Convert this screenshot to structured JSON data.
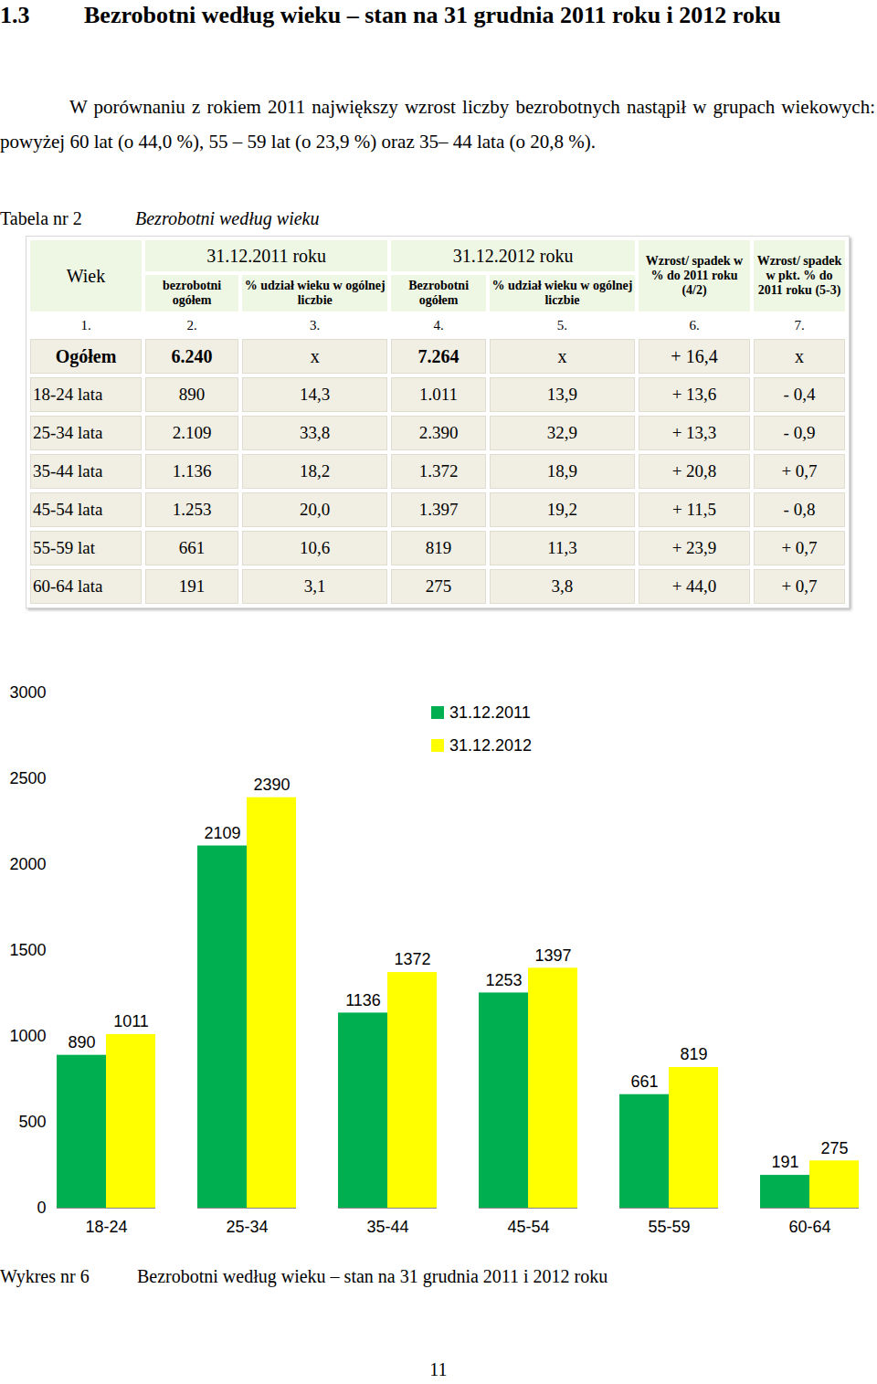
{
  "heading": {
    "number": "1.3",
    "text": "Bezrobotni według wieku – stan na 31 grudnia 2011 roku i 2012 roku"
  },
  "paragraph": "W porównaniu z rokiem 2011 największy wzrost liczby bezrobotnych nastąpił w grupach wiekowych: powyżej 60 lat (o 44,0 %), 55 – 59 lat (o 23,9 %) oraz 35– 44 lata (o 20,8 %).",
  "table": {
    "label": "Tabela nr 2",
    "title": "Bezrobotni według wieku",
    "header": {
      "first": "Wiek",
      "groups": [
        "31.12.2011 roku",
        "31.12.2012 roku"
      ],
      "subheaders": [
        "bezrobotni ogółem",
        "% udział wieku w ogólnej liczbie",
        "Bezrobotni ogółem",
        "% udział wieku w ogólnej liczbie"
      ],
      "change_pct": "Wzrost/ spadek w % do 2011 roku (4/2)",
      "change_pts": "Wzrost/ spadek w pkt. % do 2011 roku (5-3)"
    },
    "numbers": [
      "1.",
      "2.",
      "3.",
      "4.",
      "5.",
      "6.",
      "7."
    ],
    "rows": [
      [
        "Ogółem",
        "6.240",
        "x",
        "7.264",
        "x",
        "+ 16,4",
        "x"
      ],
      [
        "18-24 lata",
        "890",
        "14,3",
        "1.011",
        "13,9",
        "+ 13,6",
        "- 0,4"
      ],
      [
        "25-34 lata",
        "2.109",
        "33,8",
        "2.390",
        "32,9",
        "+ 13,3",
        "- 0,9"
      ],
      [
        "35-44 lata",
        "1.136",
        "18,2",
        "1.372",
        "18,9",
        "+ 20,8",
        "+ 0,7"
      ],
      [
        "45-54 lata",
        "1.253",
        "20,0",
        "1.397",
        "19,2",
        "+ 11,5",
        "- 0,8"
      ],
      [
        "55-59 lat",
        "661",
        "10,6",
        "819",
        "11,3",
        "+ 23,9",
        "+ 0,7"
      ],
      [
        "60-64 lata",
        "191",
        "3,1",
        "275",
        "3,8",
        "+ 44,0",
        "+ 0,7"
      ]
    ]
  },
  "chart_data": {
    "type": "bar",
    "categories": [
      "18-24",
      "25-34",
      "35-44",
      "45-54",
      "55-59",
      "60-64"
    ],
    "series": [
      {
        "name": "31.12.2011",
        "color": "#00b050",
        "values": [
          890,
          2109,
          1136,
          1253,
          661,
          191
        ]
      },
      {
        "name": "31.12.2012",
        "color": "#ffff00",
        "values": [
          1011,
          2390,
          1372,
          1397,
          819,
          275
        ]
      }
    ],
    "ylim": [
      0,
      3000
    ],
    "yticks": [
      0,
      500,
      1000,
      1500,
      2000,
      2500,
      3000
    ],
    "grid": false,
    "legend": "top",
    "data_labels": true
  },
  "caption": {
    "label": "Wykres nr 6",
    "text": "Bezrobotni według wieku – stan na 31 grudnia 2011 i 2012 roku"
  },
  "page_number": "11"
}
